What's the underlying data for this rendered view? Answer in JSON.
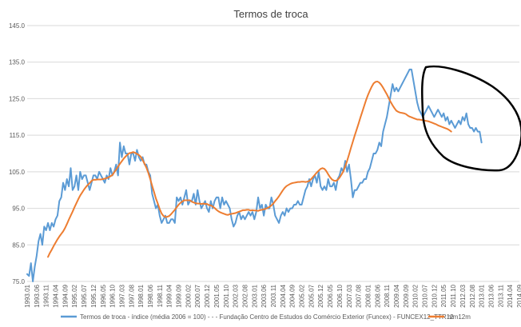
{
  "chart_data": {
    "type": "line",
    "title": "Termos de troca",
    "xlabel": "",
    "ylabel": "",
    "ylim": [
      75,
      145
    ],
    "yticks": [
      "75.0",
      "85.0",
      "95.0",
      "105.0",
      "115.0",
      "125.0",
      "135.0",
      "145.0"
    ],
    "grid": true,
    "legend_position": "bottom",
    "x_labels": [
      "1993.01",
      "1993.06",
      "1993.11",
      "1994.04",
      "1994.09",
      "1995.02",
      "1995.07",
      "1995.12",
      "1996.05",
      "1996.10",
      "1997.03",
      "1997.08",
      "1998.01",
      "1998.06",
      "1998.11",
      "1999.04",
      "1999.09",
      "2000.02",
      "2000.07",
      "2000.12",
      "2001.05",
      "2001.10",
      "2002.03",
      "2002.08",
      "2003.01",
      "2003.06",
      "2003.11",
      "2004.04",
      "2004.09",
      "2005.02",
      "2005.07",
      "2005.12",
      "2006.05",
      "2006.10",
      "2007.03",
      "2007.08",
      "2008.01",
      "2008.06",
      "2008.11",
      "2009.04",
      "2009.09",
      "2010.02",
      "2010.07",
      "2010.12",
      "2011.05",
      "2011.10",
      "2012.03",
      "2012.08",
      "2013.01",
      "2013.06",
      "2013.11",
      "2014.04",
      "2014.09"
    ],
    "series": [
      {
        "name": "Termos de troca - índice (média 2006 = 100) - - - Fundação Centro de Estudos do Comércio Exterior (Funcex) - FUNCEX12_TTR12",
        "color": "#5B9BD5",
        "start_index": 0,
        "values": [
          77,
          76.5,
          80,
          75,
          79,
          82,
          86,
          88,
          85,
          90,
          89,
          91,
          89,
          91,
          90,
          92,
          93,
          97,
          98,
          102,
          100,
          103,
          101,
          106,
          100,
          101,
          104,
          100,
          105,
          103,
          104,
          104,
          102,
          100,
          102,
          104,
          104,
          103,
          105,
          104,
          103,
          102,
          104,
          103,
          106,
          104,
          105,
          107,
          104,
          113,
          109,
          112,
          110,
          110,
          107,
          110,
          110,
          108,
          111,
          109,
          108,
          109,
          107,
          107,
          105,
          104,
          99,
          97,
          95,
          96,
          93,
          91,
          92,
          93,
          91,
          91,
          92,
          92,
          91,
          98,
          97,
          98,
          96,
          98,
          100,
          96,
          97,
          97,
          99,
          96,
          100,
          97,
          95,
          96,
          97,
          95,
          94,
          97,
          95,
          97,
          98,
          98,
          95,
          98,
          96,
          97,
          96,
          95,
          92,
          90,
          91,
          93,
          94,
          92,
          93,
          92,
          93,
          94,
          93,
          94,
          92,
          94,
          98,
          95,
          96,
          93,
          96,
          95,
          95,
          98,
          96,
          93,
          92,
          91,
          93,
          94,
          93,
          95,
          94,
          95,
          95,
          96,
          96,
          97,
          96,
          96,
          98,
          100,
          101,
          103,
          101,
          103,
          104,
          102,
          105,
          101,
          100,
          101,
          100,
          103,
          101,
          101,
          102,
          100,
          103,
          104,
          106,
          105,
          108,
          105,
          107,
          103,
          98,
          100,
          100,
          101,
          102,
          102,
          103,
          103,
          105,
          106,
          108,
          110,
          110,
          111,
          113,
          112,
          116,
          118,
          120,
          123,
          126,
          129,
          127,
          128,
          127,
          128,
          129,
          130,
          131,
          132,
          133,
          133,
          130,
          127,
          124,
          122,
          121,
          120,
          121,
          122,
          123,
          122,
          121,
          120,
          121,
          122,
          121,
          120,
          121,
          119,
          120,
          118,
          119,
          118,
          117,
          118,
          119,
          118,
          120,
          119,
          121,
          118,
          117,
          117,
          116,
          117,
          116,
          116,
          113
        ]
      },
      {
        "name": "mm12m",
        "color": "#ED7D31",
        "start_index": 11,
        "values": [
          81.7,
          82.8,
          83.7,
          84.7,
          85.6,
          86.5,
          87.3,
          88,
          88.7,
          89.6,
          90.7,
          91.9,
          93,
          94.1,
          95.3,
          96.4,
          97.5,
          98.5,
          99.3,
          100.1,
          100.8,
          101.4,
          101.9,
          102.5,
          102.8,
          102.8,
          102.9,
          102.9,
          102.9,
          103,
          103.1,
          103.3,
          103.5,
          103.8,
          104.1,
          104.9,
          105.6,
          106.4,
          107.2,
          107.9,
          108.6,
          109.2,
          109.7,
          110.1,
          110.2,
          110.4,
          110.2,
          109.9,
          109.6,
          109.1,
          108.2,
          107.2,
          106.1,
          104.7,
          103,
          101.2,
          99.5,
          97.7,
          96.3,
          94.8,
          93.6,
          92.9,
          92.6,
          92.7,
          92.9,
          93.4,
          94,
          94.6,
          95.3,
          96,
          96.5,
          96.9,
          97.2,
          97.2,
          97.2,
          97.2,
          96.8,
          96.6,
          96.4,
          96.3,
          96.3,
          96.2,
          96.3,
          96.2,
          96.2,
          95.9,
          95.8,
          95.5,
          95.1,
          94.6,
          94.2,
          93.9,
          93.7,
          93.5,
          93.3,
          93.2,
          93.4,
          93.5,
          93.6,
          93.7,
          93.9,
          94.1,
          94.3,
          94.5,
          94.5,
          94.6,
          94.6,
          94.4,
          94.5,
          94.4,
          94.4,
          94.3,
          94.5,
          94.6,
          94.7,
          94.9,
          95.1,
          95.4,
          95.8,
          96.3,
          97,
          97.6,
          98.3,
          99.1,
          99.9,
          100.6,
          101.1,
          101.4,
          101.7,
          101.9,
          102,
          102.1,
          102.2,
          102.2,
          102.3,
          102.3,
          102.2,
          102.3,
          102.5,
          103,
          103.6,
          104.2,
          104.8,
          105.3,
          105.8,
          106,
          105.8,
          105.2,
          104.3,
          103.5,
          102.9,
          102.6,
          102.5,
          102.8,
          103.4,
          104.2,
          105.1,
          106.5,
          108,
          109.7,
          111.5,
          113.2,
          114.9,
          116.5,
          118.1,
          119.8,
          121.4,
          123,
          124.6,
          126,
          127.2,
          128.3,
          129.2,
          129.6,
          129.7,
          129.4,
          128.8,
          128,
          127.1,
          126.2,
          125.1,
          124.1,
          123.2,
          122.4,
          121.7,
          121.4,
          121.2,
          121.1,
          121,
          120.8,
          120.4,
          120.1,
          119.9,
          119.7,
          119.5,
          119.3,
          119.3,
          119.2,
          119.1,
          119,
          118.9,
          118.8,
          118.6,
          118.4,
          118.2,
          118,
          117.7,
          117.5,
          117.3,
          117.1,
          116.9,
          116.7,
          116.4,
          116
        ]
      }
    ]
  }
}
